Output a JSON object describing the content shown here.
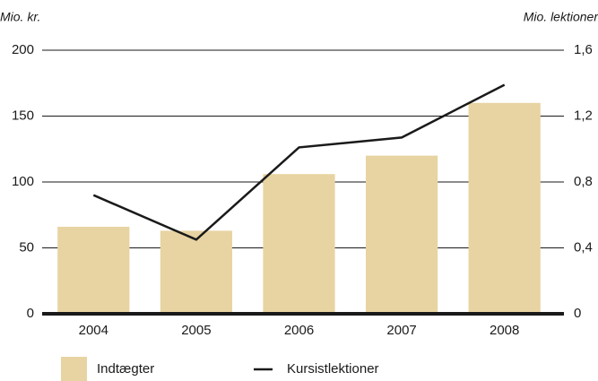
{
  "chart_data": {
    "type": "bar",
    "ylabel": "Mio. kr.",
    "y2label": "Mio. lektioner",
    "categories": [
      "2004",
      "2005",
      "2006",
      "2007",
      "2008"
    ],
    "series": [
      {
        "name": "Indtægter",
        "type": "bar",
        "color": "#e8d4a2",
        "values": [
          66,
          63,
          106,
          120,
          160
        ]
      },
      {
        "name": "Kursistlektioner",
        "type": "line",
        "axis": "y2",
        "color": "#1a1a1a",
        "values": [
          0.72,
          0.45,
          1.01,
          1.07,
          1.39
        ]
      }
    ],
    "ylim": [
      0,
      200
    ],
    "yticks": [
      0,
      50,
      100,
      150,
      200
    ],
    "y2lim": [
      0,
      1.6
    ],
    "y2ticks": [
      0,
      {
        "value": 0.4,
        "label": "0,4"
      },
      {
        "value": 0.8,
        "label": "0,8"
      },
      {
        "value": 1.2,
        "label": "1,2"
      },
      {
        "value": 1.6,
        "label": "1,6"
      }
    ],
    "grid": true,
    "legend": "bottom"
  }
}
